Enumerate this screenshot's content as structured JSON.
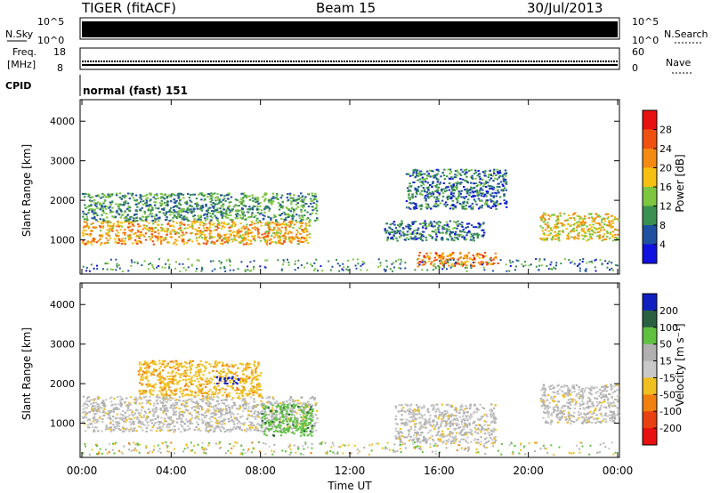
{
  "header": {
    "station": "TIGER (fitACF)",
    "beam": "Beam 15",
    "date": "30/Jul/2013"
  },
  "sky_panel": {
    "left_label": "N.Sky",
    "right_label": "N.Search",
    "ticks_left": [
      "10^5",
      "10^0"
    ],
    "ticks_right": [
      "10^5",
      "10^0"
    ]
  },
  "freq_panel": {
    "left_label_line1": "Freq.",
    "left_label_line2": "[MHz]",
    "ticks_left": [
      "18",
      "8"
    ],
    "right_label": "Nave",
    "ticks_right": [
      "60",
      "0"
    ]
  },
  "cpid": {
    "label": "CPID",
    "value": "normal (fast) 151"
  },
  "x_axis": {
    "ticks": [
      "00:00",
      "04:00",
      "08:00",
      "12:00",
      "16:00",
      "20:00",
      "00:00"
    ],
    "label": "Time UT"
  },
  "power_colorbar": {
    "label": "Power [dB]",
    "ticks": [
      "28",
      "24",
      "20",
      "16",
      "12",
      "8",
      "4"
    ],
    "colors": [
      "#e81010",
      "#f05010",
      "#f58a10",
      "#f5c010",
      "#7cc640",
      "#3a9050",
      "#2050a0",
      "#1010e0"
    ]
  },
  "velocity_colorbar": {
    "label": "Velocity [m s⁻¹]",
    "ticks": [
      "200",
      "100",
      "50",
      "15",
      "-15",
      "-50",
      "-100",
      "-200"
    ],
    "colors": [
      "#1020c0",
      "#2a6040",
      "#60c040",
      "#b0b0b0",
      "#c8c8c8",
      "#f0c020",
      "#f08010",
      "#e84010",
      "#e81010"
    ]
  },
  "chart_data": [
    {
      "type": "heatmap",
      "name_hint": "power",
      "ylabel": "Slant Range [km]",
      "yticks": [
        1000,
        2000,
        3000,
        4000
      ],
      "ylim": [
        180,
        4500
      ],
      "xlim_hours": [
        0,
        24
      ],
      "regions": [
        {
          "x": [
            0,
            10.2
          ],
          "y": [
            900,
            1500
          ],
          "value_db": 22
        },
        {
          "x": [
            0,
            10.5
          ],
          "y": [
            1500,
            2200
          ],
          "value_db": 12
        },
        {
          "x": [
            13.5,
            18
          ],
          "y": [
            1000,
            1500
          ],
          "value_db": 10
        },
        {
          "x": [
            15,
            18.6
          ],
          "y": [
            350,
            700
          ],
          "value_db": 25
        },
        {
          "x": [
            14.5,
            19
          ],
          "y": [
            1800,
            2800
          ],
          "value_db": 10
        },
        {
          "x": [
            20.5,
            24
          ],
          "y": [
            1000,
            1700
          ],
          "value_db": 20
        }
      ]
    },
    {
      "type": "heatmap",
      "name_hint": "velocity",
      "ylabel": "Slant Range [km]",
      "yticks": [
        1000,
        2000,
        3000,
        4000
      ],
      "ylim": [
        180,
        4500
      ],
      "xlim_hours": [
        0,
        24
      ],
      "regions": [
        {
          "x": [
            0,
            10.5
          ],
          "y": [
            800,
            1700
          ],
          "value_ms": 0
        },
        {
          "x": [
            2.5,
            8
          ],
          "y": [
            1700,
            2600
          ],
          "value_ms": -40
        },
        {
          "x": [
            6,
            7
          ],
          "y": [
            2000,
            2200
          ],
          "value_ms": 200
        },
        {
          "x": [
            8,
            10.3
          ],
          "y": [
            700,
            1500
          ],
          "value_ms": 60
        },
        {
          "x": [
            14,
            18.5
          ],
          "y": [
            500,
            1500
          ],
          "value_ms": 0
        },
        {
          "x": [
            20.5,
            24
          ],
          "y": [
            1000,
            2000
          ],
          "value_ms": 0
        }
      ]
    }
  ]
}
